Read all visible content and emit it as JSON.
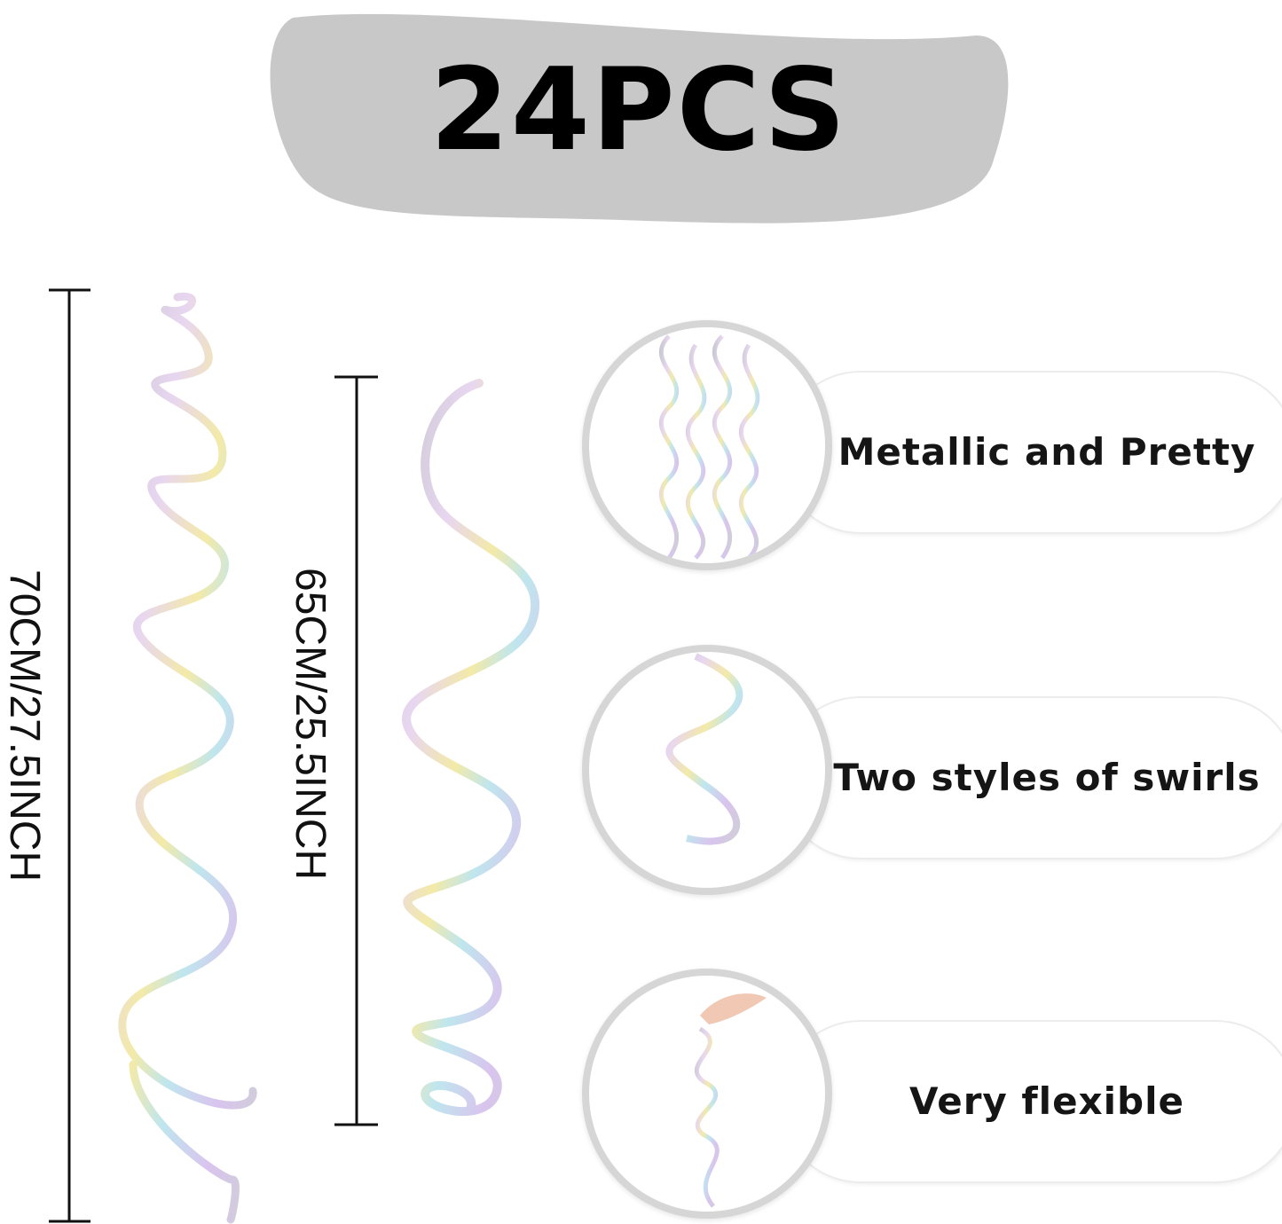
{
  "headline": "24PCS",
  "measurements": [
    {
      "label": "70CM/27.5INCH"
    },
    {
      "label": "65CM/25.5INCH"
    }
  ],
  "features": [
    {
      "label": "Metallic and Pretty",
      "icon": "swirl-cluster-image"
    },
    {
      "label": "Two styles of swirls",
      "icon": "single-swirl-image"
    },
    {
      "label": "Very flexible",
      "icon": "hand-holding-swirl-image"
    }
  ],
  "colors": {
    "blob": "#c8c8c8",
    "text": "#111111",
    "circle_border": "#d6d6d6"
  }
}
